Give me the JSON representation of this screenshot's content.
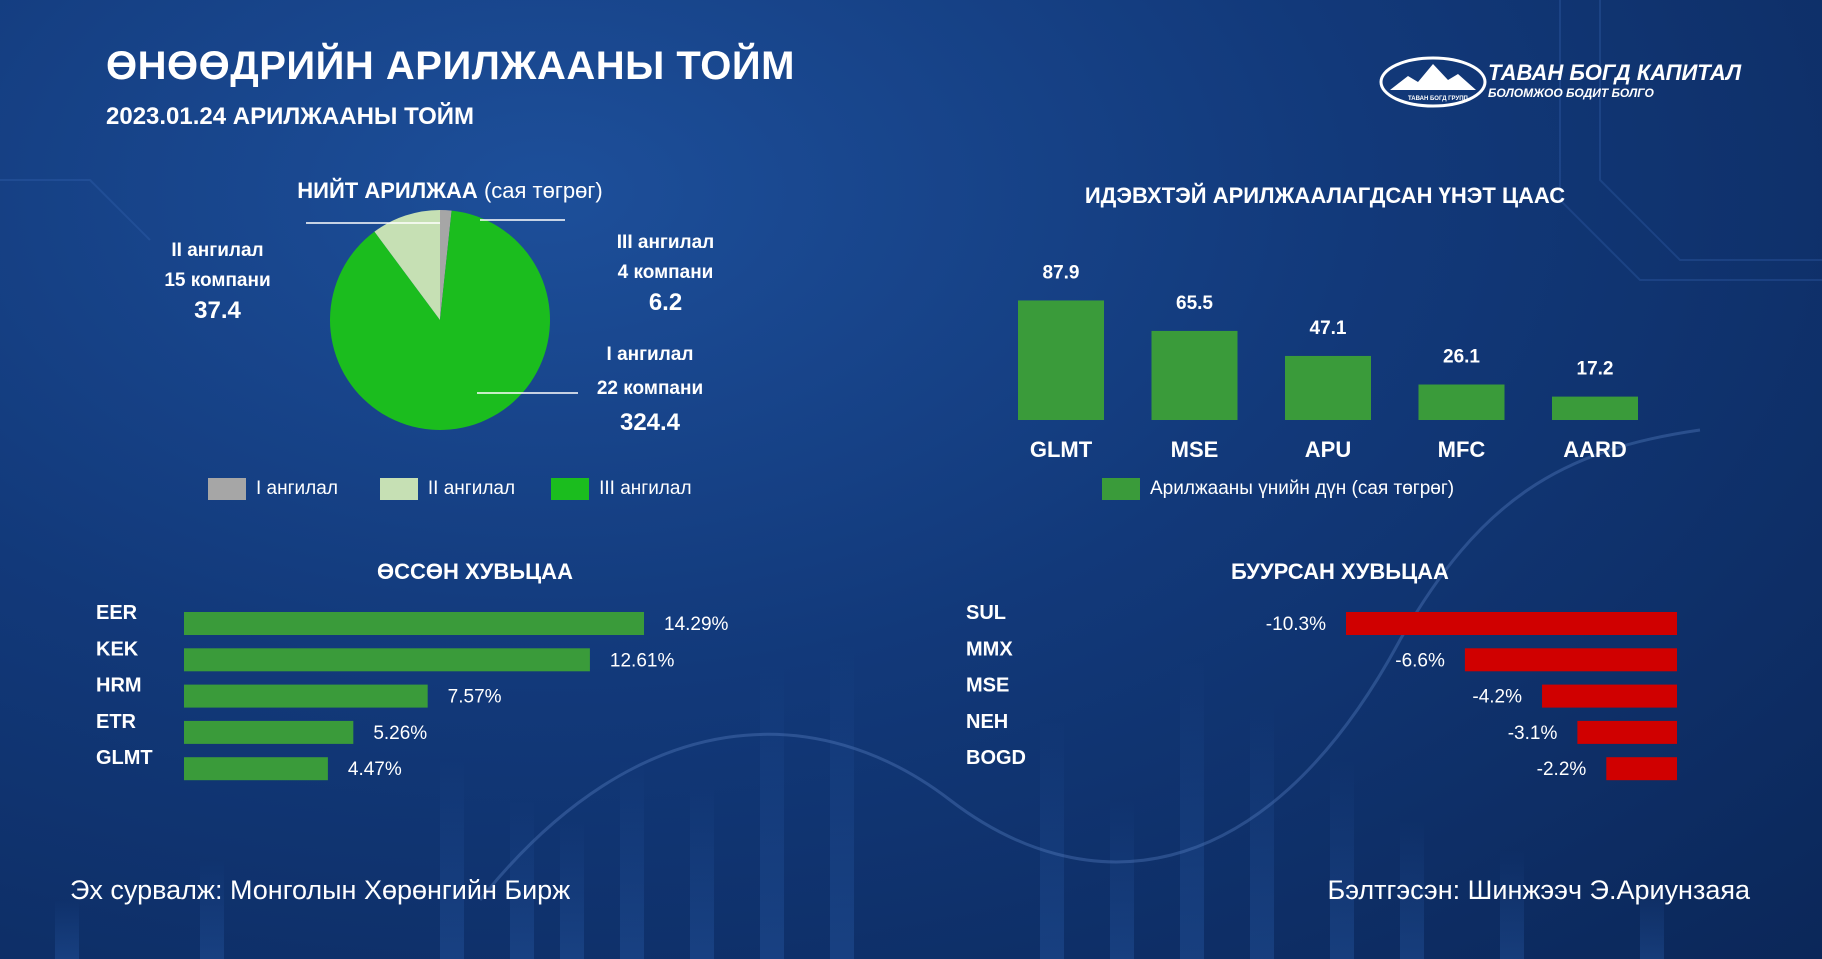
{
  "header": {
    "title": "ӨНӨӨДРИЙН АРИЛЖААНЫ ТОЙМ",
    "subtitle": "2023.01.24 АРИЛЖААНЫ ТОЙМ",
    "logo_name": "ТАВАН БОГД КАПИТАЛ",
    "logo_slogan": "БОЛОМЖОО БОДИТ БОЛГО",
    "logo_group": "ТАВАН БОГД ГРУПП"
  },
  "pie": {
    "title_bold": "НИЙТ АРИЛЖАА",
    "title_unit": "(сая төгрөг)",
    "labels": {
      "tier2": {
        "name": "II ангилал",
        "count": "15 компани",
        "value": "37.4"
      },
      "tier3": {
        "name": "III ангилал",
        "count": "4 компани",
        "value": "6.2"
      },
      "tier1": {
        "name": "I ангилал",
        "count": "22 компани",
        "value": "324.4"
      }
    },
    "legend": [
      "I ангилал",
      "II ангилал",
      "III ангилал"
    ]
  },
  "bars_title": "ИДЭВХТЭЙ АРИЛЖААЛАГДСАН ҮНЭТ ЦААС",
  "bars_legend": "Арилжааны үнийн дүн (сая төгрөг)",
  "gainers_title": "ӨССӨН ХУВЬЦАА",
  "losers_title": "БУУРСАН ХУВЬЦАА",
  "colors": {
    "pie_tier1": "#1bbd1e",
    "pie_tier2": "#c6e0b4",
    "pie_tier3": "#a6a6a6",
    "bar_green": "#3a9b3a",
    "bar_red": "#d00000"
  },
  "chart_data": [
    {
      "type": "pie",
      "title": "НИЙТ АРИЛЖАА (сая төгрөг)",
      "slices": [
        {
          "name": "I ангилал",
          "value": 324.4
        },
        {
          "name": "II ангилал",
          "value": 37.4
        },
        {
          "name": "III ангилал",
          "value": 6.2
        }
      ]
    },
    {
      "type": "bar",
      "title": "ИДЭВХТЭЙ АРИЛЖААЛАГДСАН ҮНЭТ ЦААС",
      "categories": [
        "GLMT",
        "MSE",
        "APU",
        "MFC",
        "AARD"
      ],
      "values": [
        87.9,
        65.5,
        47.1,
        26.1,
        17.2
      ],
      "value_labels": [
        "87.9",
        "65.5",
        "47.1",
        "26.1",
        "17.2"
      ],
      "series_name": "Арилжааны үнийн дүн (сая төгрөг)",
      "legend": "bottom"
    },
    {
      "type": "bar",
      "orientation": "horizontal",
      "title": "ӨССӨН ХУВЬЦАА",
      "categories": [
        "EER",
        "KEK",
        "HRM",
        "ETR",
        "GLMT"
      ],
      "values": [
        14.29,
        12.61,
        7.57,
        5.26,
        4.47
      ],
      "value_labels": [
        "14.29%",
        "12.61%",
        "7.57%",
        "5.26%",
        "4.47%"
      ]
    },
    {
      "type": "bar",
      "orientation": "horizontal",
      "title": "БУУРСАН ХУВЬЦАА",
      "categories": [
        "SUL",
        "MMX",
        "MSE",
        "NEH",
        "BOGD"
      ],
      "values": [
        -10.3,
        -6.6,
        -4.2,
        -3.1,
        -2.2
      ],
      "value_labels": [
        "-10.3%",
        "-6.6%",
        "-4.2%",
        "-3.1%",
        "-2.2%"
      ]
    }
  ],
  "footer": {
    "source": "Эх сурвалж: Монголын Хөрөнгийн Бирж",
    "author": "Бэлтгэсэн: Шинжээч Э.Ариунзаяа"
  }
}
